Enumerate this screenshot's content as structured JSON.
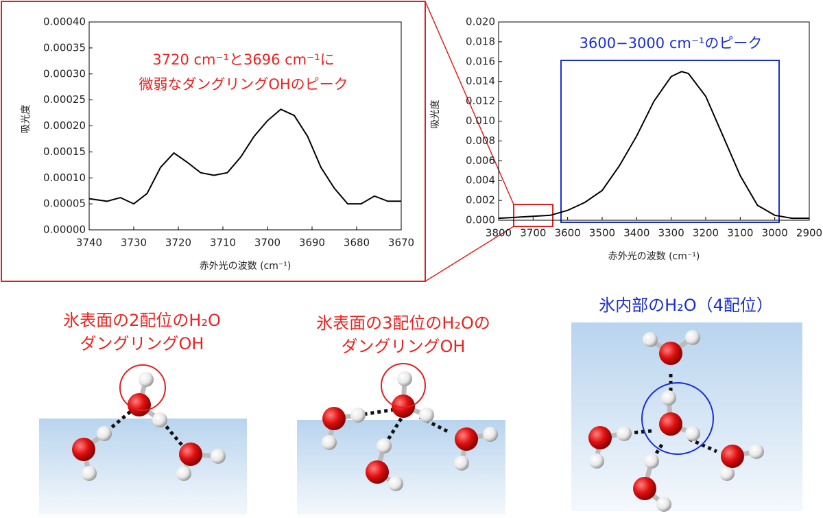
{
  "chart_data": [
    {
      "type": "line",
      "annotation": [
        "3720 cm⁻¹と3696 cm⁻¹に",
        "微弱なダングリングOHのピーク"
      ],
      "annotation_color": "#e8231f",
      "ylabel": "吸光度",
      "xlabel": "赤外光の波数 (cm⁻¹)",
      "x": [
        3740,
        3736,
        3733,
        3730,
        3727,
        3724,
        3721,
        3718,
        3715,
        3712,
        3709,
        3706,
        3703,
        3700,
        3697,
        3694,
        3691,
        3688,
        3685,
        3682,
        3679,
        3676,
        3673,
        3670
      ],
      "series": [
        {
          "color": "#000000",
          "values": [
            6e-05,
            5.5e-05,
            6.2e-05,
            5e-05,
            7e-05,
            0.00012,
            0.000148,
            0.00013,
            0.00011,
            0.000105,
            0.00011,
            0.00014,
            0.00018,
            0.00021,
            0.000232,
            0.00022,
            0.00018,
            0.00012,
            8e-05,
            5e-05,
            5e-05,
            6.5e-05,
            5.5e-05,
            5.5e-05
          ]
        }
      ],
      "xlim": [
        3740,
        3670
      ],
      "xticks": [
        3740,
        3730,
        3720,
        3710,
        3700,
        3690,
        3680,
        3670
      ],
      "ylim": [
        0,
        0.0004
      ],
      "yticks": [
        {
          "value": 0,
          "label": "0.00000"
        },
        {
          "value": 5e-05,
          "label": "0.00005"
        },
        {
          "value": 0.0001,
          "label": "0.00010"
        },
        {
          "value": 0.00015,
          "label": "0.00015"
        },
        {
          "value": 0.0002,
          "label": "0.00020"
        },
        {
          "value": 0.00025,
          "label": "0.00025"
        },
        {
          "value": 0.0003,
          "label": "0.00030"
        },
        {
          "value": 0.00035,
          "label": "0.00035"
        },
        {
          "value": 0.0004,
          "label": "0.00040"
        }
      ]
    },
    {
      "type": "line",
      "annotation": [
        "3600−3000 cm⁻¹のピーク"
      ],
      "annotation_color": "#1a2fd0",
      "ylabel": "吸光度",
      "xlabel": "赤外光の波数 (cm⁻¹)",
      "x": [
        3800,
        3750,
        3700,
        3650,
        3600,
        3550,
        3500,
        3450,
        3400,
        3350,
        3300,
        3270,
        3250,
        3200,
        3150,
        3100,
        3050,
        3000,
        2950,
        2900
      ],
      "series": [
        {
          "color": "#000000",
          "values": [
            0.0002,
            0.0003,
            0.0004,
            0.0005,
            0.001,
            0.0018,
            0.003,
            0.0055,
            0.0085,
            0.012,
            0.0145,
            0.015,
            0.0148,
            0.0125,
            0.0085,
            0.0045,
            0.0015,
            0.0005,
            0.0002,
            0.0002
          ]
        }
      ],
      "xlim": [
        3800,
        2900
      ],
      "xticks": [
        3800,
        3700,
        3600,
        3500,
        3400,
        3300,
        3200,
        3100,
        3000,
        2900
      ],
      "ylim": [
        0,
        0.02
      ],
      "yticks": [
        {
          "value": 0,
          "label": "0.000"
        },
        {
          "value": 0.002,
          "label": "0.002"
        },
        {
          "value": 0.004,
          "label": "0.004"
        },
        {
          "value": 0.006,
          "label": "0.006"
        },
        {
          "value": 0.008,
          "label": "0.008"
        },
        {
          "value": 0.01,
          "label": "0.010"
        },
        {
          "value": 0.012,
          "label": "0.012"
        },
        {
          "value": 0.014,
          "label": "0.014"
        },
        {
          "value": 0.016,
          "label": "0.016"
        },
        {
          "value": 0.018,
          "label": "0.018"
        },
        {
          "value": 0.02,
          "label": "0.020"
        }
      ]
    }
  ],
  "panels": [
    {
      "caption": [
        "氷表面の2配位のH₂O",
        "ダングリングOH"
      ]
    },
    {
      "caption": [
        "氷表面の3配位のH₂Oの",
        "ダングリングOH"
      ]
    },
    {
      "caption": [
        "氷内部のH₂O（4配位）"
      ]
    }
  ]
}
